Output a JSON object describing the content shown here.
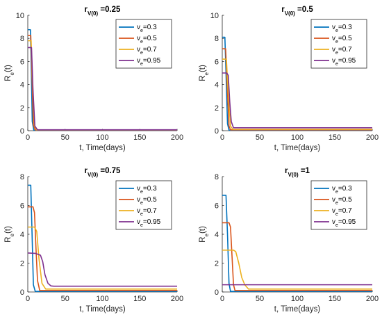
{
  "colors": {
    "series": [
      "#0072BD",
      "#D95319",
      "#EDB120",
      "#7E2F8E"
    ]
  },
  "chart_data": [
    {
      "type": "line",
      "title": {
        "base": "r",
        "sub": "V(0)",
        "rest": " =0.25"
      },
      "xlabel": "t, Time(days)",
      "ylabel": {
        "base": "R",
        "sub": "e",
        "rest": "(t)"
      },
      "xlim": [
        0,
        200
      ],
      "ylim": [
        0,
        10
      ],
      "xticks": [
        "0",
        "50",
        "100",
        "150",
        "200"
      ],
      "yticks": [
        "0",
        "2",
        "4",
        "6",
        "8",
        "10"
      ],
      "legend_position": "top-right",
      "series": [
        {
          "name": {
            "base": "v",
            "sub": "e",
            "rest": "=0.3"
          },
          "x": [
            0,
            3.5,
            4.5,
            6,
            8,
            200
          ],
          "y": [
            8.75,
            8.75,
            6.0,
            0.8,
            0.05,
            0.05
          ]
        },
        {
          "name": {
            "base": "v",
            "sub": "e",
            "rest": "=0.5"
          },
          "x": [
            0,
            4,
            5.5,
            7.5,
            10,
            200
          ],
          "y": [
            8.25,
            8.25,
            5.0,
            0.5,
            0.06,
            0.06
          ]
        },
        {
          "name": {
            "base": "v",
            "sub": "e",
            "rest": "=0.7"
          },
          "x": [
            0,
            4.5,
            6.5,
            9,
            12,
            200
          ],
          "y": [
            7.8,
            7.8,
            4.0,
            0.4,
            0.07,
            0.07
          ]
        },
        {
          "name": {
            "base": "v",
            "sub": "e",
            "rest": "=0.95"
          },
          "x": [
            0,
            5,
            7,
            9.5,
            13,
            200
          ],
          "y": [
            7.2,
            7.2,
            3.5,
            0.4,
            0.08,
            0.08
          ]
        }
      ]
    },
    {
      "type": "line",
      "title": {
        "base": "r",
        "sub": "V(0)",
        "rest": " =0.5"
      },
      "xlabel": "t, Time(days)",
      "ylabel": {
        "base": "R",
        "sub": "e",
        "rest": "(t)"
      },
      "xlim": [
        0,
        200
      ],
      "ylim": [
        0,
        10
      ],
      "xticks": [
        "0",
        "50",
        "100",
        "150",
        "200"
      ],
      "yticks": [
        "0",
        "2",
        "4",
        "6",
        "8",
        "10"
      ],
      "legend_position": "top-right",
      "series": [
        {
          "name": {
            "base": "v",
            "sub": "e",
            "rest": "=0.3"
          },
          "x": [
            0,
            3.5,
            5,
            7,
            9,
            200
          ],
          "y": [
            8.1,
            8.1,
            5.0,
            0.6,
            0.05,
            0.05
          ]
        },
        {
          "name": {
            "base": "v",
            "sub": "e",
            "rest": "=0.5"
          },
          "x": [
            0,
            4.5,
            6.5,
            9,
            11,
            200
          ],
          "y": [
            7.1,
            7.1,
            4.0,
            0.4,
            0.07,
            0.07
          ]
        },
        {
          "name": {
            "base": "v",
            "sub": "e",
            "rest": "=0.7"
          },
          "x": [
            0,
            5.5,
            8,
            11,
            14,
            200
          ],
          "y": [
            6.2,
            6.2,
            3.2,
            0.4,
            0.12,
            0.12
          ]
        },
        {
          "name": {
            "base": "v",
            "sub": "e",
            "rest": "=0.95"
          },
          "x": [
            0,
            6,
            8,
            10,
            12,
            15,
            200
          ],
          "y": [
            5.0,
            5.0,
            4.8,
            2.5,
            0.8,
            0.25,
            0.25
          ]
        }
      ]
    },
    {
      "type": "line",
      "title": {
        "base": "r",
        "sub": "V(0)",
        "rest": " =0.75"
      },
      "xlabel": "t, Time(days)",
      "ylabel": {
        "base": "R",
        "sub": "e",
        "rest": "(t)"
      },
      "xlim": [
        0,
        200
      ],
      "ylim": [
        0,
        8
      ],
      "xticks": [
        "0",
        "50",
        "100",
        "150",
        "200"
      ],
      "yticks": [
        "0",
        "2",
        "4",
        "6",
        "8"
      ],
      "legend_position": "top-right",
      "series": [
        {
          "name": {
            "base": "v",
            "sub": "e",
            "rest": "=0.3"
          },
          "x": [
            0,
            4,
            5.5,
            7.5,
            10,
            200
          ],
          "y": [
            7.4,
            7.4,
            4.5,
            0.5,
            0.04,
            0.04
          ]
        },
        {
          "name": {
            "base": "v",
            "sub": "e",
            "rest": "=0.5"
          },
          "x": [
            0,
            7,
            9,
            11,
            13,
            16,
            200
          ],
          "y": [
            5.9,
            5.9,
            5.5,
            3.0,
            0.8,
            0.1,
            0.1
          ]
        },
        {
          "name": {
            "base": "v",
            "sub": "e",
            "rest": "=0.7"
          },
          "x": [
            0,
            9,
            12,
            15,
            19,
            24,
            200
          ],
          "y": [
            4.5,
            4.5,
            4.2,
            2.3,
            0.6,
            0.2,
            0.2
          ]
        },
        {
          "name": {
            "base": "v",
            "sub": "e",
            "rest": "=0.95"
          },
          "x": [
            0,
            10,
            17,
            20,
            23,
            27,
            31,
            35,
            200
          ],
          "y": [
            2.7,
            2.68,
            2.55,
            2.1,
            1.2,
            0.6,
            0.42,
            0.4,
            0.4
          ]
        }
      ]
    },
    {
      "type": "line",
      "title": {
        "base": "r",
        "sub": "V(0)",
        "rest": " =1"
      },
      "xlabel": "t, Time(days)",
      "ylabel": {
        "base": "R",
        "sub": "e",
        "rest": "(t)"
      },
      "xlim": [
        0,
        200
      ],
      "ylim": [
        0,
        8
      ],
      "xticks": [
        "0",
        "50",
        "100",
        "150",
        "200"
      ],
      "yticks": [
        "0",
        "2",
        "4",
        "6",
        "8"
      ],
      "legend_position": "top-right",
      "series": [
        {
          "name": {
            "base": "v",
            "sub": "e",
            "rest": "=0.3"
          },
          "x": [
            0,
            5,
            7,
            9,
            11,
            200
          ],
          "y": [
            6.7,
            6.7,
            4.0,
            0.6,
            0.04,
            0.04
          ]
        },
        {
          "name": {
            "base": "v",
            "sub": "e",
            "rest": "=0.5"
          },
          "x": [
            0,
            9,
            11,
            13,
            15,
            17,
            200
          ],
          "y": [
            4.8,
            4.8,
            4.5,
            2.5,
            0.5,
            0.1,
            0.1
          ]
        },
        {
          "name": {
            "base": "v",
            "sub": "e",
            "rest": "=0.7"
          },
          "x": [
            0,
            15,
            18,
            22,
            26,
            30,
            35,
            200
          ],
          "y": [
            2.9,
            2.9,
            2.8,
            2.0,
            1.0,
            0.5,
            0.2,
            0.2
          ]
        },
        {
          "name": {
            "base": "v",
            "sub": "e",
            "rest": "=0.95"
          },
          "x": [
            0,
            200
          ],
          "y": [
            0.5,
            0.5
          ]
        }
      ]
    }
  ]
}
